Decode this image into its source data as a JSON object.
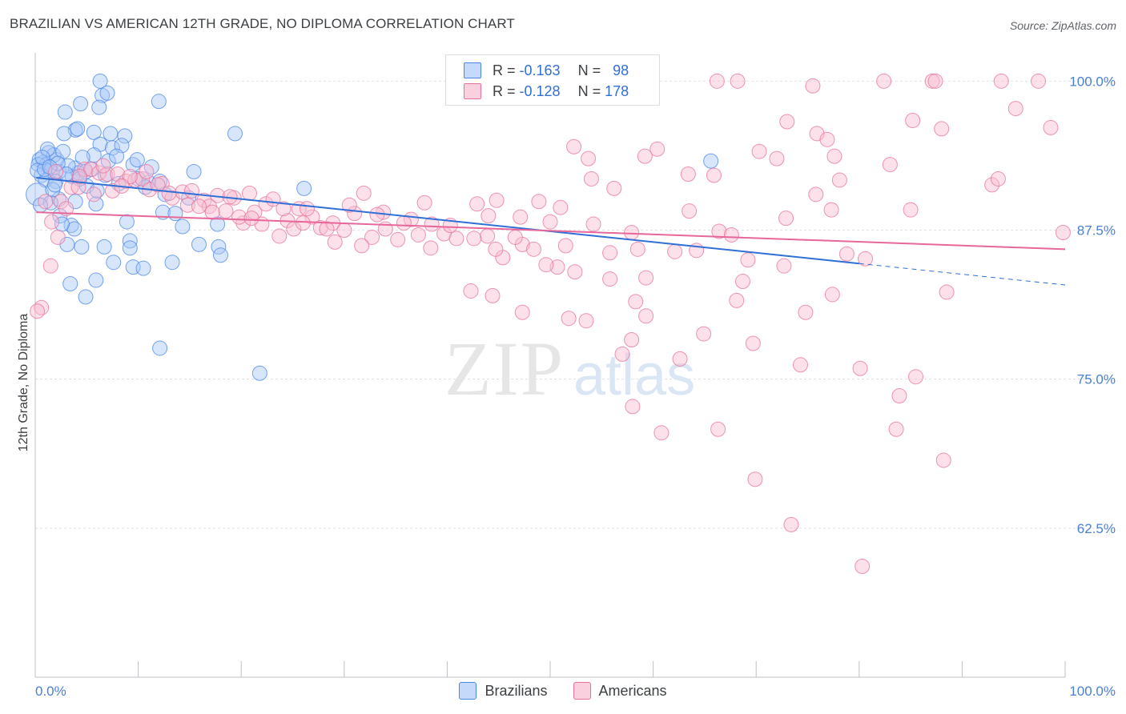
{
  "title": "BRAZILIAN VS AMERICAN 12TH GRADE, NO DIPLOMA CORRELATION CHART",
  "source": "Source: ZipAtlas.com",
  "watermark": {
    "zip": "ZIP",
    "atlas": "atlas"
  },
  "legend": {
    "r_label": "R =",
    "n_label": "N =",
    "rows": [
      {
        "r": "-0.163",
        "n": "98",
        "color": "#4a86e8"
      },
      {
        "r": "-0.128",
        "n": "178",
        "color": "#e8729a"
      }
    ]
  },
  "bottom_legend": [
    {
      "label": "Brazilians",
      "color": "#a8c8f8"
    },
    {
      "label": "Americans",
      "color": "#f8bcd0"
    }
  ],
  "chart_data": {
    "type": "scatter",
    "xlabel": "",
    "ylabel": "12th Grade, No Diploma",
    "xlim": [
      0,
      100
    ],
    "ylim": [
      50,
      101.5
    ],
    "x_tick_labels": [
      "0.0%",
      "100.0%"
    ],
    "y_ticks": [
      62.5,
      75.0,
      87.5,
      100.0
    ],
    "y_tick_labels": [
      "62.5%",
      "75.0%",
      "87.5%",
      "100.0%"
    ],
    "grid": true,
    "series": [
      {
        "name": "Brazilians",
        "color": "#4a86e8",
        "fill": "#a8c8f8",
        "trend": {
          "x0": 0.1,
          "y0": 91.9,
          "x1": 80,
          "y1": 84.7,
          "dash_to_x": 100,
          "dash_to_y": 82.9
        },
        "points": [
          [
            6.3,
            100.0
          ],
          [
            6.5,
            98.8
          ],
          [
            7.0,
            99.0
          ],
          [
            12.0,
            98.3
          ],
          [
            4.4,
            98.1
          ],
          [
            6.2,
            97.8
          ],
          [
            2.9,
            97.4
          ],
          [
            3.9,
            95.9
          ],
          [
            5.7,
            95.7
          ],
          [
            7.3,
            95.6
          ],
          [
            2.8,
            95.6
          ],
          [
            6.3,
            94.7
          ],
          [
            7.5,
            94.4
          ],
          [
            19.4,
            95.6
          ],
          [
            8.7,
            95.4
          ],
          [
            8.4,
            94.6
          ],
          [
            4.1,
            96.0
          ],
          [
            1.3,
            94.0
          ],
          [
            2.1,
            93.4
          ],
          [
            0.8,
            93.2
          ],
          [
            0.4,
            93.4
          ],
          [
            1.1,
            93.0
          ],
          [
            0.3,
            93.0
          ],
          [
            3.9,
            92.7
          ],
          [
            5.7,
            93.8
          ],
          [
            7.1,
            93.3
          ],
          [
            9.5,
            93.0
          ],
          [
            1.5,
            92.5
          ],
          [
            2.3,
            92.4
          ],
          [
            3.6,
            92.0
          ],
          [
            4.2,
            92.3
          ],
          [
            4.9,
            92.4
          ],
          [
            0.6,
            92.1
          ],
          [
            1.0,
            91.7
          ],
          [
            2.0,
            91.6
          ],
          [
            10.0,
            91.8
          ],
          [
            11.0,
            91.5
          ],
          [
            12.1,
            91.6
          ],
          [
            15.4,
            92.4
          ],
          [
            26.1,
            91.0
          ],
          [
            0.2,
            90.5
          ],
          [
            2.3,
            90.1
          ],
          [
            1.5,
            89.8
          ],
          [
            3.9,
            89.9
          ],
          [
            5.9,
            89.7
          ],
          [
            12.4,
            89.0
          ],
          [
            13.6,
            88.9
          ],
          [
            2.4,
            88.7
          ],
          [
            8.9,
            88.2
          ],
          [
            14.3,
            87.8
          ],
          [
            17.7,
            88.0
          ],
          [
            3.5,
            87.9
          ],
          [
            3.8,
            87.6
          ],
          [
            3.1,
            86.3
          ],
          [
            4.5,
            86.1
          ],
          [
            6.7,
            86.1
          ],
          [
            9.2,
            86.6
          ],
          [
            9.2,
            86.0
          ],
          [
            15.9,
            86.3
          ],
          [
            17.8,
            86.1
          ],
          [
            18.0,
            85.4
          ],
          [
            7.6,
            84.8
          ],
          [
            9.5,
            84.4
          ],
          [
            10.5,
            84.3
          ],
          [
            13.3,
            84.8
          ],
          [
            5.9,
            83.3
          ],
          [
            3.4,
            83.0
          ],
          [
            4.9,
            81.9
          ],
          [
            12.1,
            77.6
          ],
          [
            21.8,
            75.5
          ],
          [
            0.2,
            92.5
          ],
          [
            0.9,
            92.6
          ],
          [
            1.8,
            93.8
          ],
          [
            2.7,
            94.1
          ],
          [
            3.2,
            92.9
          ],
          [
            5.0,
            91.2
          ],
          [
            6.8,
            92.1
          ],
          [
            8.1,
            91.4
          ],
          [
            1.7,
            90.9
          ],
          [
            2.6,
            88.0
          ],
          [
            11.3,
            92.8
          ],
          [
            10.7,
            91.1
          ],
          [
            14.9,
            90.2
          ],
          [
            0.5,
            89.6
          ],
          [
            4.6,
            93.6
          ],
          [
            6.0,
            90.8
          ],
          [
            9.9,
            93.4
          ],
          [
            65.6,
            93.3
          ],
          [
            1.2,
            94.3
          ],
          [
            2.2,
            93.1
          ],
          [
            3.0,
            92.2
          ],
          [
            1.9,
            91.3
          ],
          [
            4.3,
            91.8
          ],
          [
            5.5,
            92.6
          ],
          [
            7.9,
            93.7
          ],
          [
            12.6,
            90.5
          ],
          [
            0.7,
            93.6
          ],
          [
            1.4,
            92.8
          ]
        ]
      },
      {
        "name": "Americans",
        "color": "#e8729a",
        "fill": "#f8bcd0",
        "trend": {
          "x0": 0.1,
          "y0": 89.0,
          "x1": 100,
          "y1": 85.9
        },
        "points": [
          [
            66.2,
            100.0
          ],
          [
            68.2,
            100.0
          ],
          [
            82.4,
            100.0
          ],
          [
            87.1,
            100.0
          ],
          [
            87.4,
            100.0
          ],
          [
            93.8,
            100.0
          ],
          [
            97.4,
            100.0
          ],
          [
            75.5,
            99.6
          ],
          [
            95.2,
            97.7
          ],
          [
            85.2,
            96.7
          ],
          [
            73.0,
            96.6
          ],
          [
            75.9,
            95.6
          ],
          [
            88.0,
            96.0
          ],
          [
            98.6,
            96.1
          ],
          [
            76.9,
            95.1
          ],
          [
            52.3,
            94.5
          ],
          [
            60.4,
            94.3
          ],
          [
            70.3,
            94.1
          ],
          [
            53.7,
            93.5
          ],
          [
            72.0,
            93.5
          ],
          [
            59.2,
            93.7
          ],
          [
            77.6,
            93.7
          ],
          [
            83.0,
            93.0
          ],
          [
            63.4,
            92.2
          ],
          [
            65.9,
            92.1
          ],
          [
            54.0,
            91.8
          ],
          [
            56.2,
            91.0
          ],
          [
            78.1,
            91.7
          ],
          [
            92.9,
            91.3
          ],
          [
            93.5,
            91.8
          ],
          [
            31.9,
            90.6
          ],
          [
            33.8,
            89.0
          ],
          [
            37.8,
            89.8
          ],
          [
            42.9,
            89.7
          ],
          [
            44.8,
            90.0
          ],
          [
            48.9,
            89.9
          ],
          [
            51.0,
            89.4
          ],
          [
            63.5,
            89.1
          ],
          [
            75.8,
            90.5
          ],
          [
            77.3,
            89.2
          ],
          [
            85.0,
            89.2
          ],
          [
            72.9,
            88.5
          ],
          [
            36.5,
            88.4
          ],
          [
            38.5,
            88.0
          ],
          [
            44.0,
            88.7
          ],
          [
            47.1,
            88.6
          ],
          [
            50.0,
            88.2
          ],
          [
            54.2,
            88.0
          ],
          [
            57.9,
            87.3
          ],
          [
            66.4,
            87.4
          ],
          [
            67.6,
            87.1
          ],
          [
            99.8,
            87.3
          ],
          [
            37.2,
            87.1
          ],
          [
            39.7,
            87.2
          ],
          [
            40.9,
            86.8
          ],
          [
            43.9,
            87.0
          ],
          [
            47.3,
            86.3
          ],
          [
            51.5,
            86.2
          ],
          [
            55.8,
            85.6
          ],
          [
            58.5,
            85.9
          ],
          [
            69.2,
            85.0
          ],
          [
            72.7,
            84.5
          ],
          [
            62.1,
            85.7
          ],
          [
            64.2,
            85.8
          ],
          [
            78.8,
            85.5
          ],
          [
            80.6,
            85.1
          ],
          [
            45.4,
            85.2
          ],
          [
            50.7,
            84.4
          ],
          [
            52.4,
            84.0
          ],
          [
            55.8,
            83.4
          ],
          [
            59.3,
            83.5
          ],
          [
            68.7,
            83.2
          ],
          [
            68.1,
            81.6
          ],
          [
            74.8,
            80.6
          ],
          [
            77.4,
            82.1
          ],
          [
            88.5,
            82.3
          ],
          [
            42.3,
            82.4
          ],
          [
            44.4,
            82.0
          ],
          [
            58.3,
            81.5
          ],
          [
            59.3,
            80.3
          ],
          [
            47.3,
            80.6
          ],
          [
            51.8,
            80.1
          ],
          [
            53.5,
            79.9
          ],
          [
            64.9,
            78.8
          ],
          [
            69.7,
            78.0
          ],
          [
            57.9,
            78.3
          ],
          [
            80.1,
            75.9
          ],
          [
            74.3,
            76.2
          ],
          [
            62.6,
            76.7
          ],
          [
            57.0,
            77.1
          ],
          [
            85.5,
            75.2
          ],
          [
            83.9,
            73.6
          ],
          [
            58.0,
            72.7
          ],
          [
            60.8,
            70.5
          ],
          [
            66.3,
            70.8
          ],
          [
            83.6,
            70.8
          ],
          [
            88.2,
            68.2
          ],
          [
            69.9,
            66.6
          ],
          [
            73.4,
            62.8
          ],
          [
            80.3,
            59.3
          ],
          [
            0.6,
            81.0
          ],
          [
            0.2,
            80.7
          ],
          [
            1.5,
            84.5
          ],
          [
            1.6,
            88.2
          ],
          [
            2.5,
            89.9
          ],
          [
            3.5,
            91.1
          ],
          [
            4.2,
            91.1
          ],
          [
            4.8,
            92.6
          ],
          [
            5.4,
            92.6
          ],
          [
            6.2,
            92.3
          ],
          [
            7.0,
            92.2
          ],
          [
            8.0,
            92.2
          ],
          [
            8.8,
            91.6
          ],
          [
            9.7,
            91.7
          ],
          [
            10.4,
            91.8
          ],
          [
            11.1,
            90.9
          ],
          [
            12.3,
            91.4
          ],
          [
            13.3,
            90.2
          ],
          [
            14.3,
            90.7
          ],
          [
            15.2,
            90.8
          ],
          [
            16.4,
            90.0
          ],
          [
            17.7,
            90.4
          ],
          [
            18.5,
            89.1
          ],
          [
            19.3,
            90.2
          ],
          [
            20.2,
            88.1
          ],
          [
            21.3,
            89.0
          ],
          [
            22.4,
            89.7
          ],
          [
            23.1,
            90.1
          ],
          [
            24.5,
            88.3
          ],
          [
            25.6,
            89.3
          ],
          [
            26.9,
            88.6
          ],
          [
            27.7,
            87.7
          ],
          [
            28.9,
            88.1
          ],
          [
            30.0,
            87.5
          ],
          [
            31.0,
            88.9
          ],
          [
            32.7,
            86.9
          ],
          [
            34.0,
            87.6
          ],
          [
            35.2,
            86.7
          ],
          [
            2.2,
            86.9
          ],
          [
            3.0,
            89.3
          ],
          [
            5.7,
            90.5
          ],
          [
            7.5,
            90.8
          ],
          [
            9.2,
            92.0
          ],
          [
            11.9,
            91.3
          ],
          [
            14.8,
            89.6
          ],
          [
            16.9,
            89.5
          ],
          [
            18.9,
            90.3
          ],
          [
            20.8,
            90.6
          ],
          [
            22.0,
            88.0
          ],
          [
            24.1,
            89.3
          ],
          [
            25.1,
            87.6
          ],
          [
            26.4,
            89.3
          ],
          [
            28.3,
            87.6
          ],
          [
            30.5,
            89.6
          ],
          [
            1.0,
            89.9
          ],
          [
            2.0,
            92.4
          ],
          [
            4.3,
            92.0
          ],
          [
            6.6,
            92.9
          ],
          [
            8.4,
            91.2
          ],
          [
            10.8,
            92.4
          ],
          [
            13.0,
            90.6
          ],
          [
            15.9,
            89.5
          ],
          [
            17.2,
            89.0
          ],
          [
            19.8,
            88.6
          ],
          [
            21.0,
            88.5
          ],
          [
            23.7,
            87.0
          ],
          [
            26.0,
            88.1
          ],
          [
            29.1,
            86.5
          ],
          [
            31.7,
            86.2
          ],
          [
            33.2,
            88.8
          ],
          [
            35.8,
            88.1
          ],
          [
            38.4,
            86.0
          ],
          [
            40.3,
            87.9
          ],
          [
            42.6,
            86.8
          ],
          [
            44.7,
            85.9
          ],
          [
            46.6,
            86.9
          ],
          [
            48.4,
            85.9
          ],
          [
            49.6,
            84.6
          ]
        ]
      }
    ]
  }
}
